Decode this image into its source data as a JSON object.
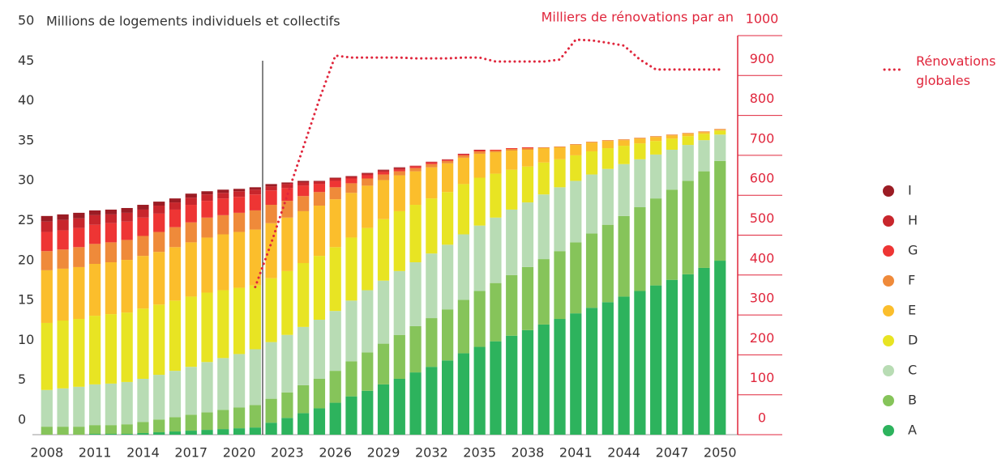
{
  "chart_data": {
    "type": "bar",
    "stacked": true,
    "y_label": "Millions de logements individuels et collectifs",
    "y2_label": "Milliers de rénovations par an",
    "x": [
      2008,
      2009,
      2010,
      2011,
      2012,
      2013,
      2014,
      2015,
      2016,
      2017,
      2018,
      2019,
      2020,
      2021,
      2022,
      2023,
      2024,
      2025,
      2026,
      2027,
      2028,
      2029,
      2030,
      2031,
      2032,
      2033,
      2034,
      2035,
      2036,
      2037,
      2038,
      2039,
      2040,
      2041,
      2042,
      2043,
      2044,
      2045,
      2046,
      2047,
      2048,
      2049,
      2050
    ],
    "xlim": [
      2007.1,
      2051.1
    ],
    "xticks": [
      2008,
      2011,
      2014,
      2017,
      2020,
      2023,
      2026,
      2029,
      2032,
      2035,
      2038,
      2041,
      2044,
      2047,
      2050
    ],
    "ylim": [
      0,
      50
    ],
    "yticks": [
      0,
      5,
      10,
      15,
      20,
      25,
      30,
      35,
      40,
      45,
      50
    ],
    "y2lim": [
      0,
      1000
    ],
    "y2ticks": [
      0,
      100,
      200,
      300,
      400,
      500,
      600,
      700,
      800,
      900,
      1000
    ],
    "series": [
      {
        "name": "A",
        "color": "#2db35d",
        "values": [
          0,
          0,
          0,
          0.1,
          0.1,
          0.1,
          0.2,
          0.3,
          0.4,
          0.5,
          0.6,
          0.7,
          0.8,
          0.9,
          1.5,
          2.1,
          2.7,
          3.3,
          4.0,
          4.8,
          5.5,
          6.3,
          7.0,
          7.8,
          8.5,
          9.3,
          10.2,
          11.0,
          11.7,
          12.4,
          13.1,
          13.8,
          14.5,
          15.2,
          15.9,
          16.6,
          17.3,
          18.0,
          18.7,
          19.4,
          20.1,
          20.9,
          21.8
        ]
      },
      {
        "name": "B",
        "color": "#86c45a",
        "values": [
          1.0,
          1.0,
          1.0,
          1.1,
          1.1,
          1.2,
          1.4,
          1.6,
          1.8,
          2.0,
          2.2,
          2.4,
          2.6,
          2.8,
          3.0,
          3.2,
          3.5,
          3.7,
          4.0,
          4.4,
          4.8,
          5.1,
          5.5,
          5.8,
          6.1,
          6.4,
          6.7,
          7.0,
          7.3,
          7.6,
          7.9,
          8.2,
          8.5,
          8.9,
          9.3,
          9.7,
          10.1,
          10.5,
          10.9,
          11.3,
          11.7,
          12.1,
          12.5
        ]
      },
      {
        "name": "C",
        "color": "#b8dcb4",
        "values": [
          4.6,
          4.8,
          5.0,
          5.1,
          5.2,
          5.3,
          5.4,
          5.6,
          5.8,
          6.0,
          6.3,
          6.5,
          6.7,
          7.0,
          7.1,
          7.2,
          7.3,
          7.4,
          7.5,
          7.6,
          7.8,
          7.9,
          8.0,
          8.0,
          8.1,
          8.1,
          8.2,
          8.2,
          8.2,
          8.2,
          8.1,
          8.1,
          8.0,
          7.7,
          7.4,
          7.0,
          6.5,
          6.0,
          5.5,
          5.0,
          4.5,
          3.9,
          3.3
        ]
      },
      {
        "name": "D",
        "color": "#e8e423",
        "values": [
          8.4,
          8.5,
          8.5,
          8.6,
          8.7,
          8.7,
          8.8,
          8.8,
          8.8,
          8.8,
          8.7,
          8.5,
          8.3,
          8.0,
          8.0,
          8.0,
          8.0,
          8.0,
          8.0,
          7.9,
          7.8,
          7.7,
          7.5,
          7.2,
          6.9,
          6.6,
          6.3,
          6.0,
          5.5,
          5.0,
          4.5,
          4.0,
          3.5,
          3.2,
          2.9,
          2.6,
          2.3,
          2.0,
          1.7,
          1.4,
          1.1,
          0.8,
          0.5
        ]
      },
      {
        "name": "E",
        "color": "#fbbe2c",
        "values": [
          6.6,
          6.5,
          6.5,
          6.5,
          6.5,
          6.6,
          6.6,
          6.6,
          6.7,
          6.8,
          6.9,
          7.0,
          7.0,
          7.0,
          6.9,
          6.7,
          6.5,
          6.3,
          6.0,
          5.6,
          5.3,
          4.9,
          4.5,
          4.2,
          3.9,
          3.6,
          3.3,
          3.0,
          2.7,
          2.4,
          2.1,
          1.8,
          1.5,
          1.3,
          1.1,
          0.9,
          0.7,
          0.6,
          0.5,
          0.4,
          0.3,
          0.2,
          0.1
        ]
      },
      {
        "name": "F",
        "color": "#ef8a3a",
        "values": [
          2.4,
          2.4,
          2.5,
          2.5,
          2.5,
          2.5,
          2.5,
          2.5,
          2.5,
          2.5,
          2.5,
          2.4,
          2.4,
          2.4,
          2.3,
          2.1,
          1.9,
          1.7,
          1.5,
          1.2,
          0.9,
          0.7,
          0.5,
          0.4,
          0.4,
          0.3,
          0.3,
          0.3,
          0.2,
          0.2,
          0.2,
          0.1,
          0.1,
          0.1,
          0.1,
          0.1,
          0.1,
          0.1,
          0.1,
          0.1,
          0.1,
          0.1,
          0.1
        ]
      },
      {
        "name": "G",
        "color": "#ee3534",
        "values": [
          2.4,
          2.4,
          2.4,
          2.4,
          2.4,
          2.3,
          2.3,
          2.3,
          2.2,
          2.2,
          2.1,
          2.1,
          2.0,
          2.0,
          1.8,
          1.6,
          1.3,
          1.0,
          0.8,
          0.6,
          0.4,
          0.3,
          0.2,
          0.2,
          0.2,
          0.1,
          0.1,
          0.1,
          0.1,
          0.1,
          0.1,
          0,
          0,
          0,
          0,
          0,
          0,
          0,
          0,
          0,
          0,
          0,
          0
        ]
      },
      {
        "name": "H",
        "color": "#c8262c",
        "values": [
          1.3,
          1.3,
          1.2,
          1.2,
          1.1,
          1.1,
          1.0,
          1.0,
          0.9,
          0.9,
          0.8,
          0.7,
          0.7,
          0.6,
          0.5,
          0.5,
          0.4,
          0.3,
          0.3,
          0.2,
          0.2,
          0.2,
          0.2,
          0.1,
          0.1,
          0.1,
          0.1,
          0.1,
          0,
          0,
          0,
          0,
          0,
          0,
          0,
          0,
          0,
          0,
          0,
          0,
          0,
          0,
          0
        ]
      },
      {
        "name": "I",
        "color": "#9b1c24",
        "values": [
          0.7,
          0.7,
          0.7,
          0.6,
          0.6,
          0.6,
          0.6,
          0.5,
          0.5,
          0.5,
          0.4,
          0.4,
          0.3,
          0.3,
          0.3,
          0.2,
          0.2,
          0.1,
          0.1,
          0.1,
          0.1,
          0.1,
          0.1,
          0,
          0,
          0,
          0,
          0,
          0,
          0,
          0,
          0,
          0,
          0,
          0,
          0,
          0,
          0,
          0,
          0,
          0,
          0,
          0
        ]
      },
      {
        "name": "Rénovations globales",
        "color": "#e0263c",
        "type": "line",
        "axis": "y2",
        "style": "dotted",
        "values": [
          null,
          null,
          null,
          null,
          null,
          null,
          null,
          null,
          null,
          null,
          null,
          null,
          null,
          370,
          480,
          600,
          720,
          840,
          950,
          945,
          945,
          945,
          945,
          943,
          943,
          943,
          945,
          945,
          935,
          935,
          935,
          935,
          940,
          990,
          988,
          982,
          975,
          940,
          915,
          915,
          915,
          915,
          915
        ]
      }
    ]
  }
}
